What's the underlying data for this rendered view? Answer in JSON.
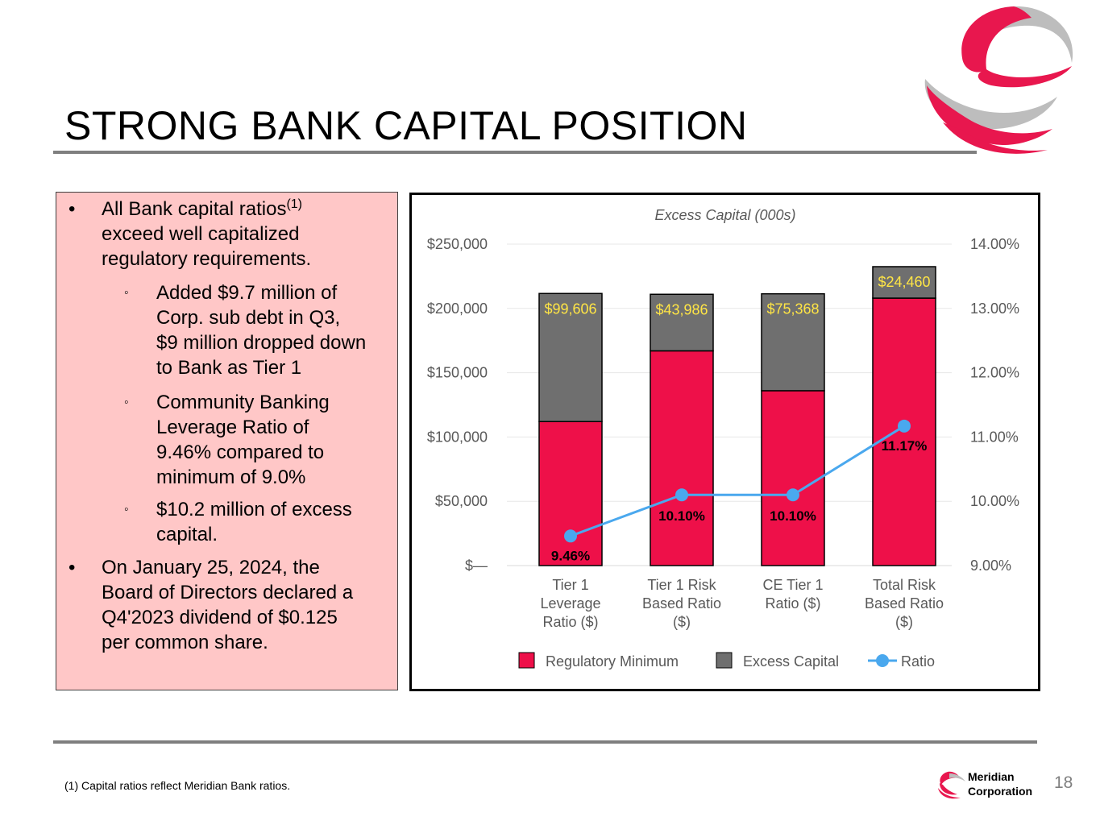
{
  "slide": {
    "title": "STRONG BANK CAPITAL POSITION",
    "page_number": "18",
    "footnote": "(1) Capital ratios reflect Meridian Bank ratios.",
    "brand": {
      "line1": "Meridian",
      "line2": "Corporation"
    }
  },
  "bullets": [
    {
      "level": 1,
      "mark": "•",
      "lines": [
        "All Bank capital ratios",
        "exceed well capitalized",
        "regulatory requirements."
      ],
      "superscript": "(1)"
    },
    {
      "level": 2,
      "mark": "◦",
      "lines": [
        "Added $9.7 million of",
        "Corp. sub debt in Q3,",
        "$9 million dropped down",
        "to Bank as Tier 1"
      ]
    },
    {
      "level": 2,
      "mark": "◦",
      "lines": [
        "Community Banking",
        "Leverage Ratio of",
        "9.46% compared to",
        "minimum of 9.0%"
      ]
    },
    {
      "level": 2,
      "mark": "◦",
      "lines": [
        "$10.2 million of excess",
        "capital."
      ]
    },
    {
      "level": 1,
      "mark": "•",
      "lines": [
        "On January 25, 2024, the",
        "Board of Directors declared a",
        "Q4'2023 dividend of $0.125",
        "per common share."
      ]
    }
  ],
  "colors": {
    "regulatory_minimum": "#ee1049",
    "excess_capital": "#6f6f6f",
    "ratio_line": "#4aa8ee",
    "excess_label": "#ffe545",
    "accent": "#e8174e"
  },
  "chart_data": {
    "type": "bar",
    "stacked": true,
    "title": "Excess Capital (000s)",
    "categories": [
      [
        "Tier 1",
        "Leverage",
        "Ratio ($)"
      ],
      [
        "Tier 1 Risk",
        "Based Ratio",
        "($)"
      ],
      [
        "CE Tier 1",
        "Ratio ($)"
      ],
      [
        "Total Risk",
        "Based Ratio",
        "($)"
      ]
    ],
    "series": [
      {
        "name": "Regulatory Minimum",
        "values": [
          112000,
          167000,
          136000,
          208000
        ]
      },
      {
        "name": "Excess Capital",
        "values": [
          99606,
          43986,
          75368,
          24460
        ],
        "labels": [
          "$99,606",
          "$43,986",
          "$75,368",
          "$24,460"
        ]
      }
    ],
    "line_series": {
      "name": "Ratio",
      "values": [
        9.46,
        10.1,
        10.1,
        11.17
      ],
      "labels": [
        "9.46%",
        "10.10%",
        "10.10%",
        "11.17%"
      ]
    },
    "y_left": {
      "min": 0,
      "max": 250000,
      "ticks": [
        "$—",
        "$50,000",
        "$100,000",
        "$150,000",
        "$200,000",
        "$250,000"
      ]
    },
    "y_right": {
      "min": 9,
      "max": 14,
      "ticks": [
        "9.00%",
        "10.00%",
        "11.00%",
        "12.00%",
        "13.00%",
        "14.00%"
      ]
    },
    "grid": true,
    "legend_position": "bottom"
  }
}
